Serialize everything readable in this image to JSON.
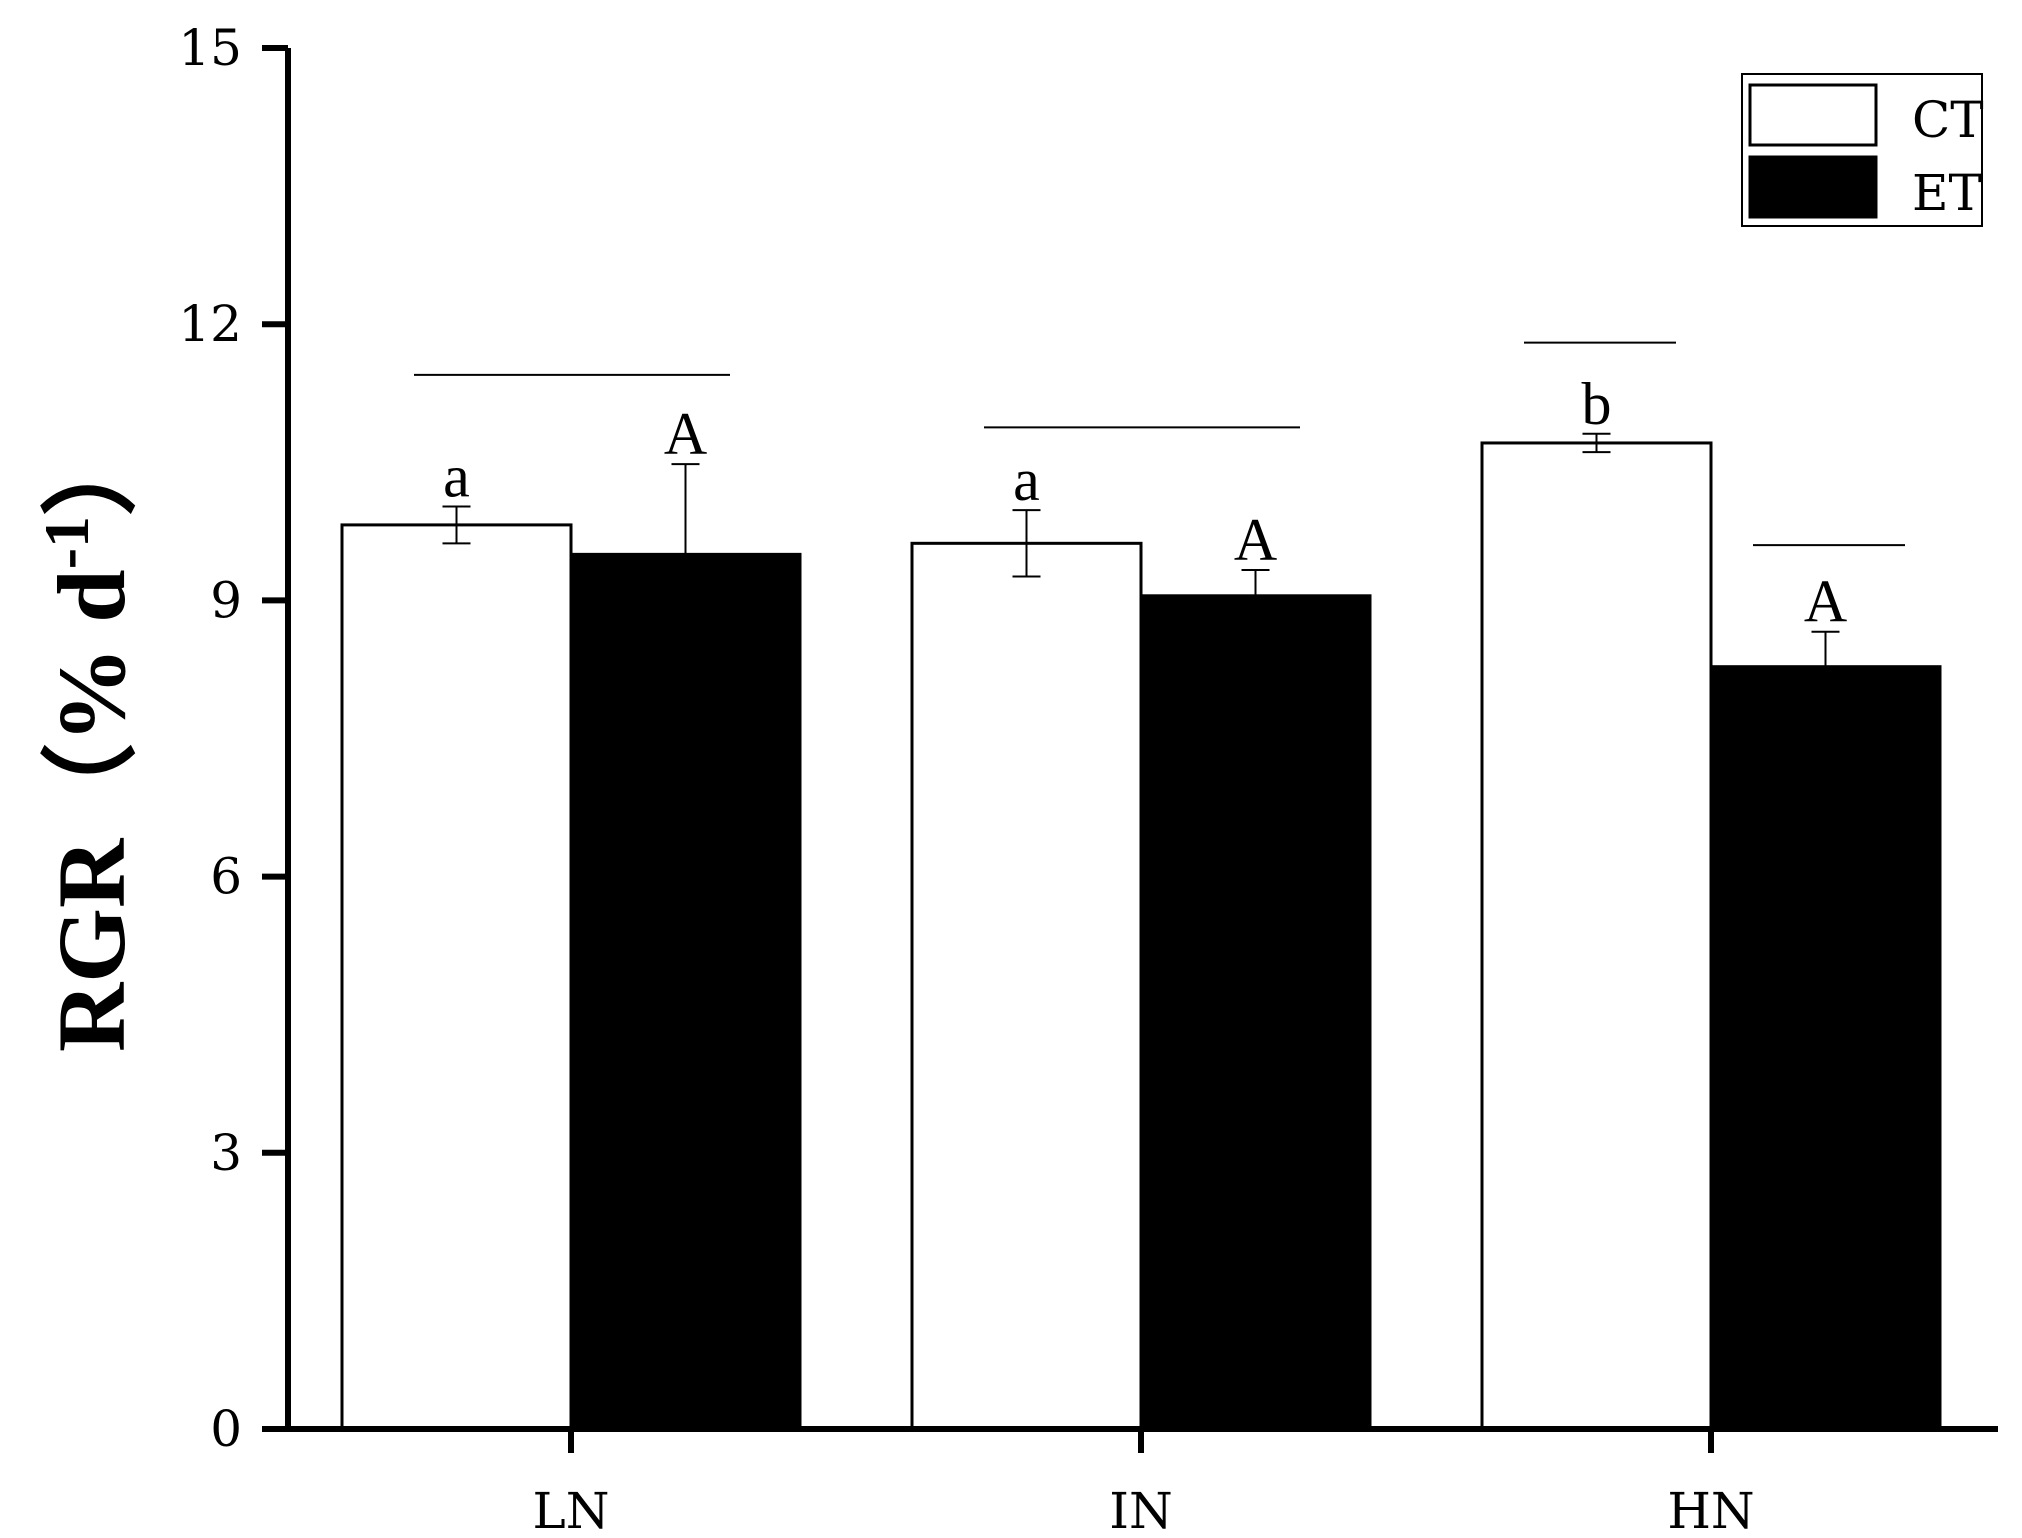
{
  "chart_data": {
    "type": "bar",
    "ylabel": "RGR（% d-1）",
    "ylabel_parts": {
      "main": "RGR（% d",
      "sup": "-1",
      "close": "）"
    },
    "ylim": [
      0,
      15
    ],
    "yticks": [
      "0",
      "3",
      "6",
      "9",
      "12",
      "15"
    ],
    "categories": [
      "LN",
      "IN",
      "HN"
    ],
    "legend_position": "top-right",
    "series": [
      {
        "name": "CT",
        "color": "#ffffff",
        "values": [
          9.82,
          9.62,
          10.71
        ],
        "errors": [
          0.2,
          0.36,
          0.1
        ],
        "labels": [
          "a",
          "a",
          "b"
        ]
      },
      {
        "name": "ET",
        "color": "#000000",
        "values": [
          9.5,
          9.05,
          8.28
        ],
        "errors": [
          0.98,
          0.28,
          0.38
        ],
        "labels": [
          "A",
          "A",
          "A"
        ]
      }
    ],
    "significance_lines": [
      {
        "category": 0,
        "from_series": 0,
        "to_series": 1,
        "y": 11.45
      },
      {
        "category": 1,
        "from_series": 0,
        "to_series": 1,
        "y": 10.88
      },
      {
        "category": 2,
        "from_series": 0,
        "to_series": 0,
        "y": 11.8
      },
      {
        "category": 2,
        "from_series": 1,
        "to_series": 1,
        "y": 9.6
      }
    ]
  }
}
